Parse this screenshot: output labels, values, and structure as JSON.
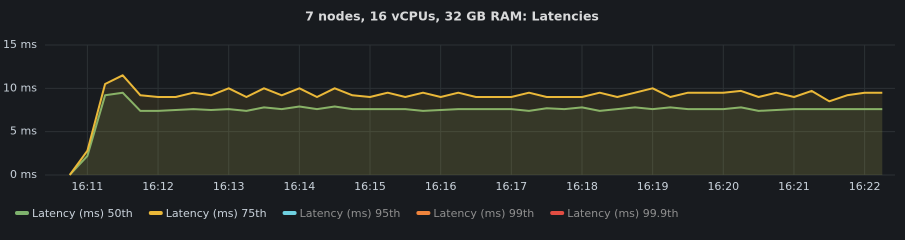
{
  "chart_data": {
    "type": "line",
    "title": "7 nodes, 16 vCPUs, 32 GB RAM: Latencies",
    "x": [
      970.75,
      971,
      971.25,
      971.5,
      971.75,
      972,
      972.25,
      972.5,
      972.75,
      973,
      973.25,
      973.5,
      973.75,
      974,
      974.25,
      974.5,
      974.75,
      975,
      975.25,
      975.5,
      975.75,
      976,
      976.25,
      976.5,
      976.75,
      977,
      977.25,
      977.5,
      977.75,
      978,
      978.25,
      978.5,
      978.75,
      979,
      979.25,
      979.5,
      979.75,
      980,
      980.25,
      980.5,
      980.75,
      981,
      981.25,
      981.5,
      981.75,
      982,
      982.25
    ],
    "xlim": [
      970.4,
      982.43
    ],
    "xticks": [
      {
        "value": 971,
        "label": "16:11"
      },
      {
        "value": 972,
        "label": "16:12"
      },
      {
        "value": 973,
        "label": "16:13"
      },
      {
        "value": 974,
        "label": "16:14"
      },
      {
        "value": 975,
        "label": "16:15"
      },
      {
        "value": 976,
        "label": "16:16"
      },
      {
        "value": 977,
        "label": "16:17"
      },
      {
        "value": 978,
        "label": "16:18"
      },
      {
        "value": 979,
        "label": "16:19"
      },
      {
        "value": 980,
        "label": "16:20"
      },
      {
        "value": 981,
        "label": "16:21"
      },
      {
        "value": 982,
        "label": "16:22"
      }
    ],
    "ylim": [
      0,
      15
    ],
    "yticks": [
      {
        "value": 0,
        "label": "0 ms"
      },
      {
        "value": 5,
        "label": "5 ms"
      },
      {
        "value": 10,
        "label": "10 ms"
      },
      {
        "value": 15,
        "label": "15 ms"
      }
    ],
    "grid": true,
    "series": [
      {
        "name": "Latency (ms) 50th",
        "color": "#7eb26d",
        "values": [
          0,
          2.2,
          9.2,
          9.5,
          7.4,
          7.4,
          7.5,
          7.6,
          7.5,
          7.6,
          7.4,
          7.8,
          7.6,
          7.9,
          7.6,
          7.9,
          7.6,
          7.6,
          7.6,
          7.6,
          7.4,
          7.5,
          7.6,
          7.6,
          7.6,
          7.6,
          7.4,
          7.7,
          7.6,
          7.8,
          7.4,
          7.6,
          7.8,
          7.6,
          7.8,
          7.6,
          7.6,
          7.6,
          7.8,
          7.4,
          7.5,
          7.6,
          7.6,
          7.6,
          7.6,
          7.6,
          7.6
        ]
      },
      {
        "name": "Latency (ms) 75th",
        "color": "#eab839",
        "values": [
          0,
          2.8,
          10.5,
          11.5,
          9.2,
          9,
          9,
          9.5,
          9.2,
          10,
          9,
          10,
          9.2,
          10,
          9,
          10,
          9.2,
          9,
          9.5,
          9,
          9.5,
          9,
          9.5,
          9,
          9,
          9,
          9.5,
          9,
          9,
          9,
          9.5,
          9,
          9.5,
          10,
          9,
          9.5,
          9.5,
          9.5,
          9.7,
          9,
          9.5,
          9,
          9.7,
          8.5,
          9.2,
          9.5,
          9.5
        ]
      }
    ],
    "hidden_series": [
      {
        "name": "Latency (ms) 95th",
        "color": "#6ed0e0"
      },
      {
        "name": "Latency (ms) 99th",
        "color": "#ef843c"
      },
      {
        "name": "Latency (ms) 99.9th",
        "color": "#e24d42"
      }
    ]
  }
}
